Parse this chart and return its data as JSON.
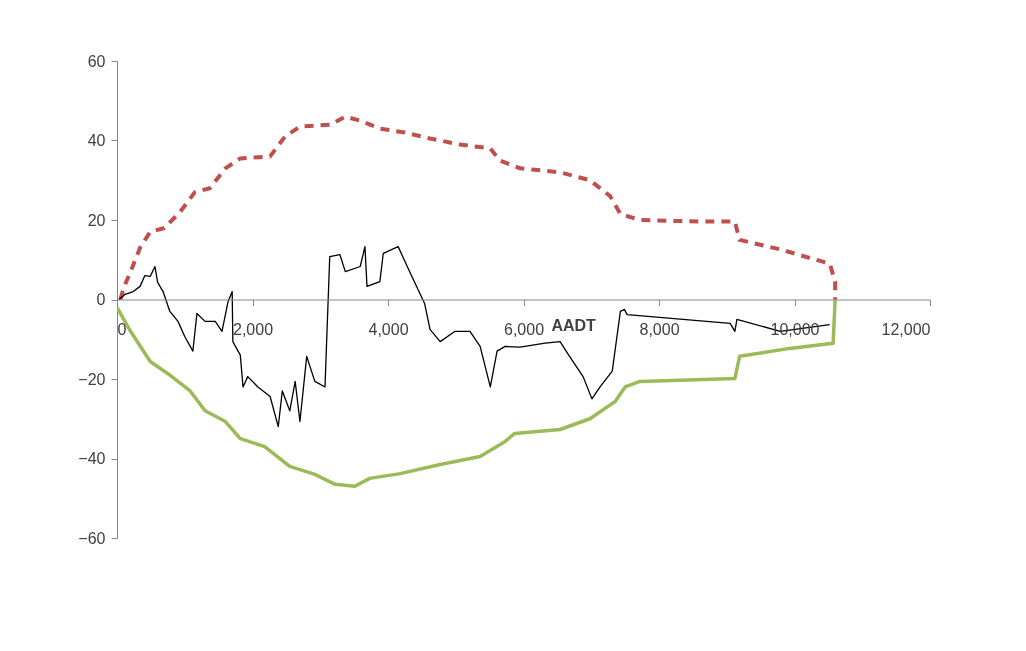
{
  "chart_data": {
    "type": "line",
    "xlim": [
      0,
      12000
    ],
    "ylim": [
      -60,
      60
    ],
    "xticks": [
      {
        "value": 0,
        "label": "0"
      },
      {
        "value": 2000,
        "label": "2,000"
      },
      {
        "value": 4000,
        "label": "4,000"
      },
      {
        "value": 6000,
        "label": "6,000"
      },
      {
        "value": 8000,
        "label": "8,000"
      },
      {
        "value": 10000,
        "label": "10,000"
      },
      {
        "value": 12000,
        "label": "12,000"
      }
    ],
    "yticks": [
      -60,
      -40,
      -20,
      0,
      20,
      40,
      60
    ],
    "grid": false,
    "annotations": [
      "AADT"
    ],
    "series": [
      {
        "color": "#c0504d",
        "line_style": "dashed",
        "x": [
          50,
          100,
          200,
          340,
          490,
          700,
          930,
          1150,
          1370,
          1600,
          1820,
          2260,
          2480,
          2700,
          3150,
          3370,
          3590,
          3880,
          4250,
          4620,
          5060,
          5510,
          5650,
          5950,
          6540,
          6980,
          7280,
          7430,
          7720,
          8610,
          9120,
          9190,
          9790,
          10520,
          10600,
          10600
        ],
        "values": [
          0,
          3,
          7,
          13,
          17,
          18,
          22,
          27,
          28,
          33,
          35.5,
          36,
          41,
          43.5,
          44,
          46,
          45,
          43,
          42,
          40.5,
          39,
          38,
          35,
          33,
          32,
          30,
          26,
          21.5,
          20,
          19.6,
          19.6,
          15,
          12.6,
          9,
          4.5,
          0
        ]
      },
      {
        "color": "#9bbb59",
        "line_style": "solid",
        "x": [
          0,
          200,
          490,
          780,
          1080,
          1300,
          1600,
          1820,
          2180,
          2550,
          2920,
          3220,
          3510,
          3730,
          4180,
          4770,
          5360,
          5730,
          5870,
          6540,
          6980,
          7350,
          7500,
          7720,
          9120,
          9190,
          9930,
          10570,
          10600
        ],
        "values": [
          -2,
          -8,
          -15.6,
          -19,
          -23,
          -28,
          -30.7,
          -35,
          -37,
          -42,
          -44,
          -46.5,
          -47,
          -45,
          -43.8,
          -41.5,
          -39.5,
          -35.7,
          -33.7,
          -32.7,
          -30,
          -25.7,
          -22,
          -20.6,
          -19.9,
          -14.3,
          -12.3,
          -11,
          0
        ]
      },
      {
        "color": "#000000",
        "line_style": "solid",
        "x": [
          30,
          120,
          240,
          340,
          410,
          490,
          560,
          600,
          680,
          780,
          900,
          1000,
          1120,
          1180,
          1300,
          1450,
          1550,
          1640,
          1700,
          1710,
          1820,
          1860,
          1930,
          2080,
          2260,
          2380,
          2440,
          2550,
          2630,
          2700,
          2800,
          2920,
          3070,
          3140,
          3290,
          3370,
          3590,
          3660,
          3690,
          3880,
          3930,
          4150,
          4320,
          4540,
          4620,
          4770,
          4990,
          5210,
          5360,
          5510,
          5610,
          5730,
          5950,
          6320,
          6540,
          6660,
          6880,
          7010,
          7130,
          7310,
          7430,
          7490,
          7530,
          9050,
          9120,
          9150,
          9790,
          10520
        ],
        "values": [
          0,
          1.3,
          2,
          3.3,
          6,
          5.8,
          8.3,
          4.3,
          2,
          -3,
          -5.5,
          -9.3,
          -13,
          -3.5,
          -5.5,
          -5.5,
          -8,
          -0.5,
          2,
          -10.6,
          -14,
          -22,
          -19.4,
          -22,
          -24.4,
          -32,
          -23,
          -28,
          -20.6,
          -30.7,
          -14.3,
          -20.6,
          -22,
          10.8,
          11.3,
          7,
          8.3,
          13.3,
          3.3,
          4.5,
          11.6,
          13.3,
          7,
          -1,
          -7.5,
          -10.6,
          -8,
          -8,
          -11.8,
          -22,
          -13,
          -11.8,
          -12,
          -11,
          -10.6,
          -13.8,
          -19.4,
          -25,
          -22,
          -18,
          -3,
          -2.5,
          -3.8,
          -6,
          -8,
          -5,
          -8,
          -6.3
        ]
      }
    ]
  }
}
